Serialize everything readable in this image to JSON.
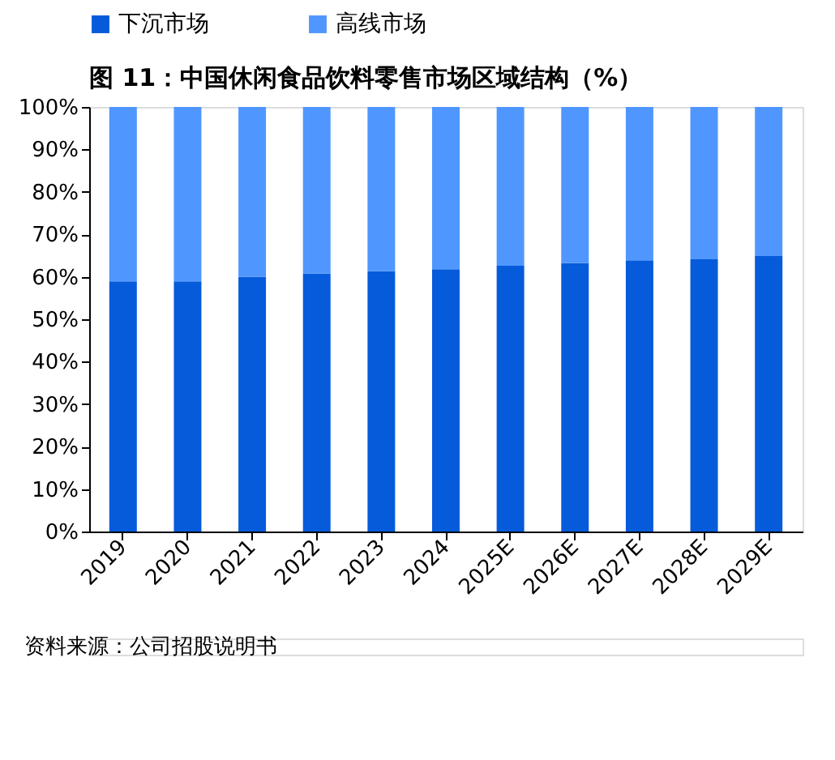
{
  "chart_data": {
    "type": "bar",
    "stacked": true,
    "title": "图 11：中国休闲食品饮料零售市场区域结构（%）",
    "categories": [
      "2019",
      "2020",
      "2021",
      "2022",
      "2023",
      "2024",
      "2025E",
      "2026E",
      "2027E",
      "2028E",
      "2029E"
    ],
    "series": [
      {
        "name": "下沉市场",
        "color": "#065bdb",
        "values": [
          58.9,
          58.9,
          60.0,
          60.8,
          61.3,
          61.8,
          62.6,
          63.2,
          63.9,
          64.1,
          64.9
        ]
      },
      {
        "name": "高线市场",
        "color": "#4f97ff",
        "values": [
          41.1,
          41.1,
          40.0,
          39.2,
          38.7,
          38.2,
          37.4,
          36.8,
          36.1,
          35.9,
          35.1
        ]
      }
    ],
    "ylim": [
      0,
      100
    ],
    "yticks": [
      {
        "value": 0,
        "label": "0%"
      },
      {
        "value": 10,
        "label": "10%"
      },
      {
        "value": 20,
        "label": "20%"
      },
      {
        "value": 30,
        "label": "30%"
      },
      {
        "value": 40,
        "label": "40%"
      },
      {
        "value": 50,
        "label": "50%"
      },
      {
        "value": 60,
        "label": "60%"
      },
      {
        "value": 70,
        "label": "70%"
      },
      {
        "value": 80,
        "label": "80%"
      },
      {
        "value": 90,
        "label": "90%"
      },
      {
        "value": 100,
        "label": "100%"
      }
    ],
    "legend": "top",
    "grid": false,
    "annotations": [
      "资料来源：公司招股说明书"
    ]
  }
}
